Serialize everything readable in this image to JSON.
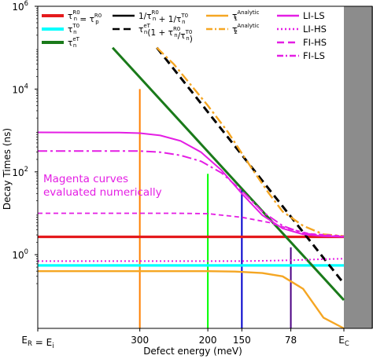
{
  "chart_data": {
    "type": "line",
    "xlabel": "Defect energy (meV)",
    "ylabel": "Decay Times (ns)",
    "yscale": "log",
    "ylim_log10": [
      -1.78,
      6
    ],
    "xlim_meV": [
      450,
      0
    ],
    "grid": false,
    "x_ticks": [
      {
        "label": "E_R = E_i",
        "value": 450
      },
      {
        "label": "300",
        "value": 300
      },
      {
        "label": "200",
        "value": 200
      },
      {
        "label": "150",
        "value": 150
      },
      {
        "label": "78",
        "value": 78
      },
      {
        "label": "E_C",
        "value": 0
      }
    ],
    "y_ticks": [
      {
        "label": "10^0",
        "exp": 0
      },
      {
        "label": "10^2",
        "exp": 2
      },
      {
        "label": "10^4",
        "exp": 4
      },
      {
        "label": "10^6",
        "exp": 6
      }
    ],
    "shaded_region": {
      "x_from": 0,
      "x_to": -25,
      "color": "#8c8c8c"
    },
    "annotation": {
      "lines": [
        "Magenta curves",
        "evaluated numerically"
      ],
      "color": "#e41ee4"
    },
    "legend": [
      {
        "label": "τ_n^{R0} = τ_p^{R0}",
        "color": "#e41a1c",
        "style": "solid"
      },
      {
        "label": "τ_n^{T0}",
        "color": "#00ffff",
        "style": "solid"
      },
      {
        "label": "τ_n^{eT}",
        "color": "#1a7a1a",
        "style": "solid"
      },
      {
        "label": "1/τ_n^{R0} + 1/τ_n^{T0}",
        "color": "#000000",
        "style": "solid"
      },
      {
        "label": "τ_n^{eT}(1 + τ_n^{R0}/τ_n^{T0})",
        "color": "#000000",
        "style": "dash"
      },
      {
        "label": "τ_1^{Analytic}",
        "color": "#f5a623",
        "style": "solid"
      },
      {
        "label": "τ_2^{Analytic}",
        "color": "#f5a623",
        "style": "dashdot"
      },
      {
        "label": "LI-LS",
        "color": "#e41ee4",
        "style": "solid"
      },
      {
        "label": "LI-HS",
        "color": "#e41ee4",
        "style": "dot"
      },
      {
        "label": "FI-HS",
        "color": "#e41ee4",
        "style": "dash"
      },
      {
        "label": "FI-LS",
        "color": "#e41ee4",
        "style": "dashdot"
      }
    ],
    "series": [
      {
        "name": "τ_n^{R0} = τ_p^{R0}",
        "color": "#e41a1c",
        "dash": "",
        "width": 3.2,
        "x": [
          450,
          0
        ],
        "y": [
          2.7,
          2.7
        ]
      },
      {
        "name": "τ_n^{T0}",
        "color": "#00ffff",
        "dash": "",
        "width": 3.2,
        "x": [
          450,
          0
        ],
        "y": [
          0.55,
          0.55
        ]
      },
      {
        "name": "τ_n^{eT}",
        "color": "#1a7a1a",
        "dash": "",
        "width": 3,
        "x": [
          340,
          0
        ],
        "y": [
          100000.0,
          0.08
        ]
      },
      {
        "name": "τ_n^{eT}(1 + τ_n^{R0}/τ_n^{T0})",
        "color": "#000000",
        "dash": "10 6",
        "width": 3,
        "x": [
          275,
          0
        ],
        "y": [
          100000.0,
          0.2
        ]
      },
      {
        "name": "τ_1^{Analytic}",
        "color": "#f5a623",
        "dash": "",
        "width": 2.4,
        "x": [
          450,
          250,
          200,
          160,
          120,
          90,
          60,
          30,
          0
        ],
        "y": [
          0.4,
          0.4,
          0.4,
          0.39,
          0.36,
          0.3,
          0.15,
          0.03,
          0.01
        ]
      },
      {
        "name": "τ_2^{Analytic}",
        "color": "#f5a623",
        "dash": "12 4 3 4",
        "width": 2.4,
        "x": [
          275,
          250,
          200,
          170,
          150,
          130,
          110,
          90,
          60,
          30,
          0
        ],
        "y": [
          100000.0,
          40000,
          4000,
          900,
          280,
          90,
          30,
          11,
          5,
          3.1,
          2.8
        ]
      },
      {
        "name": "LI-LS",
        "color": "#e41ee4",
        "dash": "",
        "width": 2,
        "x": [
          450,
          330,
          300,
          270,
          240,
          210,
          180,
          150,
          120,
          90,
          60,
          30,
          0
        ],
        "y": [
          900,
          890,
          860,
          760,
          560,
          300,
          110,
          30,
          9,
          4.3,
          3.1,
          2.8,
          2.7
        ]
      },
      {
        "name": "LI-HS",
        "color": "#e41ee4",
        "dash": "2 3",
        "width": 2,
        "x": [
          450,
          150,
          100,
          60,
          30,
          0
        ],
        "y": [
          0.7,
          0.7,
          0.72,
          0.75,
          0.78,
          0.8
        ]
      },
      {
        "name": "FI-HS",
        "color": "#e41ee4",
        "dash": "6 4",
        "width": 1.8,
        "x": [
          450,
          250,
          200,
          150,
          110,
          80,
          50,
          0
        ],
        "y": [
          10,
          10,
          9.8,
          8,
          6,
          4.2,
          3.2,
          2.8
        ]
      },
      {
        "name": "FI-LS",
        "color": "#e41ee4",
        "dash": "12 4 3 4",
        "width": 2,
        "x": [
          450,
          300,
          270,
          240,
          210,
          180,
          150,
          120,
          90,
          60,
          30,
          0
        ],
        "y": [
          320,
          318,
          300,
          250,
          180,
          95,
          35,
          11,
          5,
          3.3,
          2.9,
          2.7
        ]
      }
    ],
    "vertical_markers": [
      {
        "value": 300,
        "color": "#ff8000",
        "y_top": 10000.0
      },
      {
        "value": 200,
        "color": "#00ff00",
        "y_top": 90
      },
      {
        "value": 150,
        "color": "#0000cc",
        "y_top": 40
      },
      {
        "value": 78,
        "color": "#4b0082",
        "y_top": 1.5
      }
    ]
  }
}
